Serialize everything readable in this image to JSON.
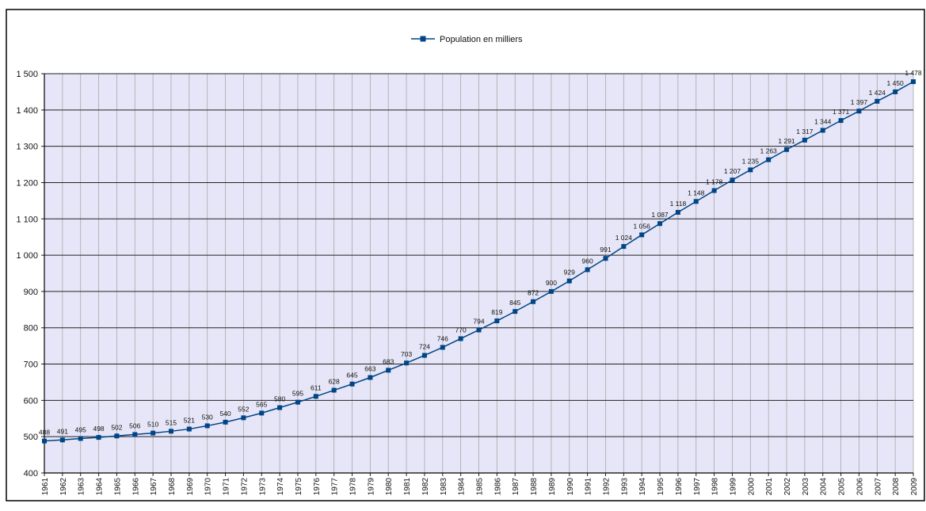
{
  "chart_data": {
    "type": "line",
    "title": "",
    "xlabel": "",
    "ylabel": "",
    "legend": {
      "label": "Population en milliers",
      "position": "top-center"
    },
    "ylim": [
      400,
      1500
    ],
    "y_ticks": [
      400,
      500,
      600,
      700,
      800,
      900,
      1000,
      1100,
      1200,
      1300,
      1400,
      1500
    ],
    "y_tick_labels": [
      "400",
      "500",
      "600",
      "700",
      "800",
      "900",
      "1 000",
      "1 100",
      "1 200",
      "1 300",
      "1 400",
      "1 500"
    ],
    "grid": true,
    "plot_background": "#e6e6f8",
    "series_color": "#004586",
    "x": [
      "1961",
      "1962",
      "1963",
      "1964",
      "1965",
      "1966",
      "1967",
      "1968",
      "1969",
      "1970",
      "1971",
      "1972",
      "1973",
      "1974",
      "1975",
      "1976",
      "1977",
      "1978",
      "1979",
      "1980",
      "1981",
      "1982",
      "1983",
      "1984",
      "1985",
      "1986",
      "1987",
      "1988",
      "1989",
      "1990",
      "1991",
      "1992",
      "1993",
      "1994",
      "1995",
      "1996",
      "1997",
      "1998",
      "1999",
      "2000",
      "2001",
      "2002",
      "2003",
      "2004",
      "2005",
      "2006",
      "2007",
      "2008",
      "2009"
    ],
    "series": [
      {
        "name": "Population en milliers",
        "values": [
          488,
          491,
          495,
          498,
          502,
          506,
          510,
          515,
          521,
          530,
          540,
          552,
          565,
          580,
          595,
          611,
          628,
          645,
          663,
          683,
          703,
          724,
          746,
          770,
          794,
          819,
          845,
          872,
          900,
          929,
          960,
          991,
          1024,
          1056,
          1087,
          1118,
          1148,
          1178,
          1207,
          1235,
          1263,
          1291,
          1317,
          1344,
          1371,
          1397,
          1424,
          1450,
          1478
        ],
        "labels": [
          "488",
          "491",
          "495",
          "498",
          "502",
          "506",
          "510",
          "515",
          "521",
          "530",
          "540",
          "552",
          "565",
          "580",
          "595",
          "611",
          "628",
          "645",
          "663",
          "683",
          "703",
          "724",
          "746",
          "770",
          "794",
          "819",
          "845",
          "872",
          "900",
          "929",
          "960",
          "991",
          "1 024",
          "1 056",
          "1 087",
          "1 118",
          "1 148",
          "1 178",
          "1 207",
          "1 235",
          "1 263",
          "1 291",
          "1 317",
          "1 344",
          "1 371",
          "1 397",
          "1 424",
          "1 450",
          "1 478"
        ]
      }
    ]
  }
}
